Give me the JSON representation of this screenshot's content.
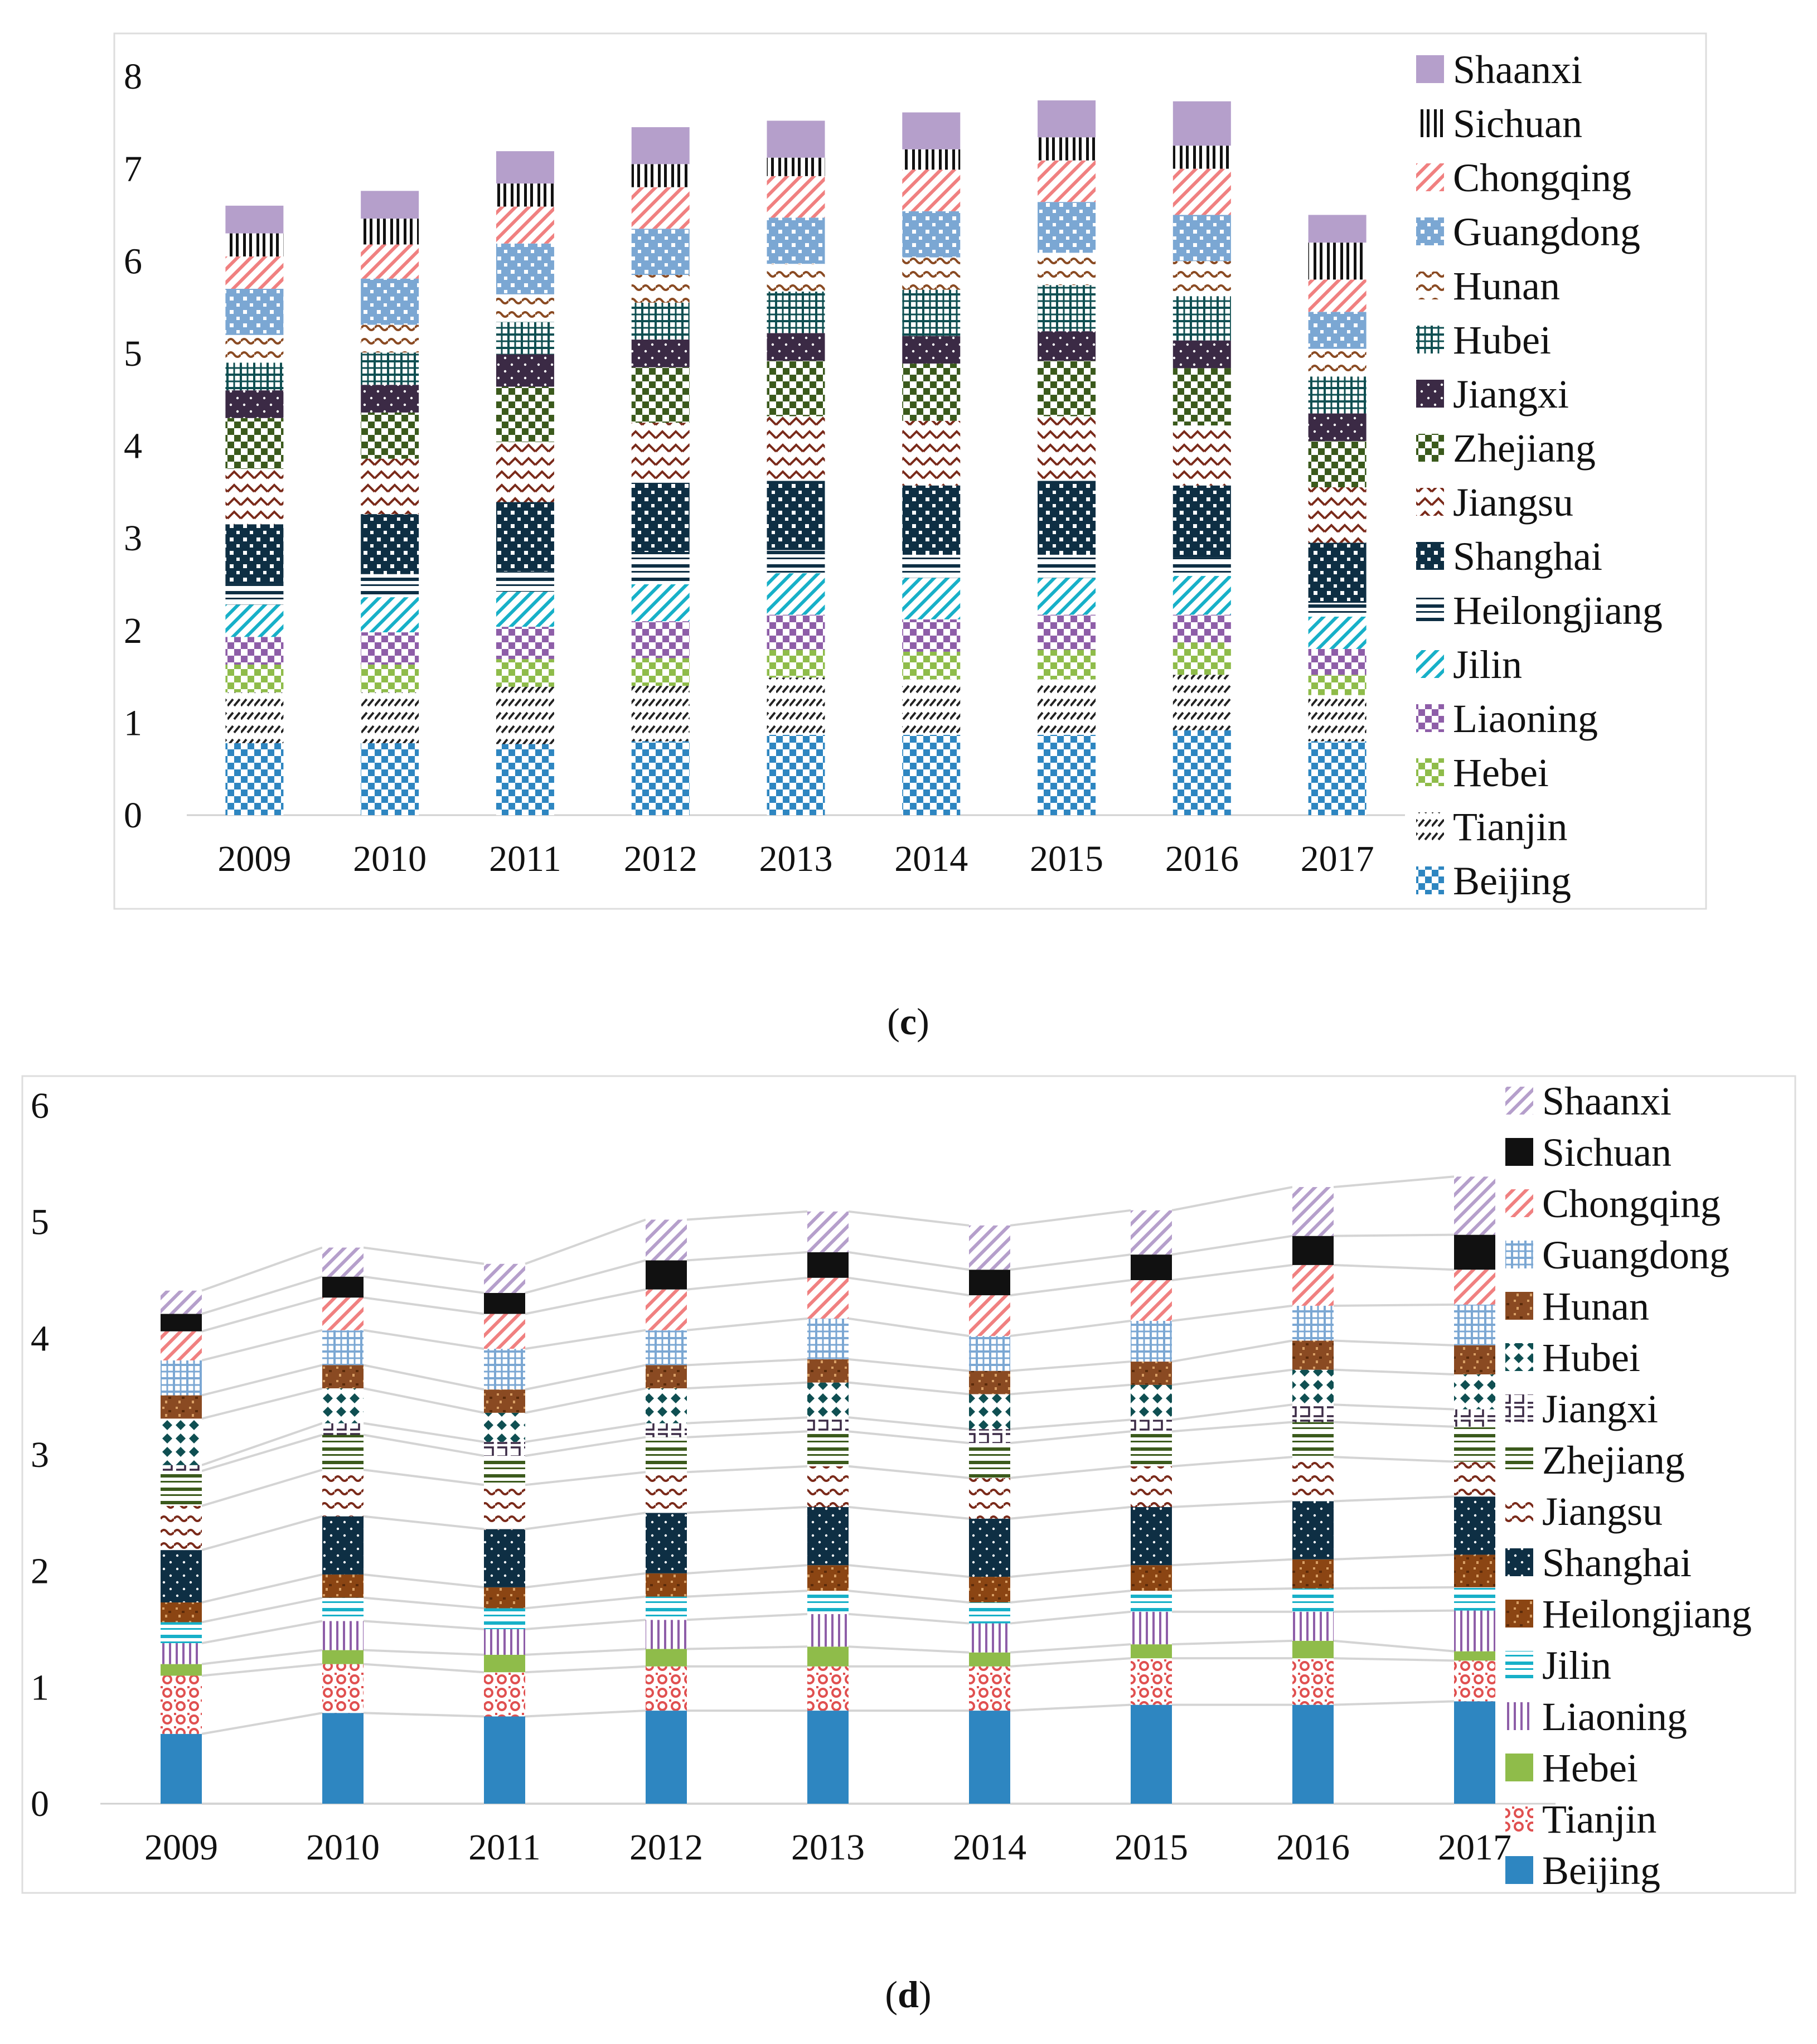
{
  "figure": {
    "panels": [
      {
        "id": "c",
        "caption": {
          "open": "(",
          "letter": "c",
          "close": ")"
        },
        "ylim": [
          0,
          8
        ],
        "yticks": [
          0,
          1,
          2,
          3,
          4,
          5,
          6,
          7,
          8
        ],
        "connector_lines": false
      },
      {
        "id": "d",
        "caption": {
          "open": "(",
          "letter": "d",
          "close": ")"
        },
        "ylim": [
          0,
          6
        ],
        "yticks": [
          0,
          1,
          2,
          3,
          4,
          5,
          6
        ],
        "connector_lines": true
      }
    ]
  },
  "chart_data": [
    {
      "type": "bar",
      "stacked": true,
      "panel": "c",
      "title": "",
      "xlabel": "",
      "ylabel": "",
      "ylim": [
        0,
        8
      ],
      "grid": false,
      "legend": "right",
      "categories": [
        "2009",
        "2010",
        "2011",
        "2012",
        "2013",
        "2014",
        "2015",
        "2016",
        "2017"
      ],
      "series": [
        {
          "name": "Beijing",
          "color": "#2e86c1",
          "values": [
            0.78,
            0.78,
            0.77,
            0.8,
            0.87,
            0.87,
            0.87,
            0.92,
            0.8
          ]
        },
        {
          "name": "Tianjin",
          "color": "#222222",
          "values": [
            0.55,
            0.55,
            0.62,
            0.6,
            0.62,
            0.6,
            0.6,
            0.6,
            0.5
          ]
        },
        {
          "name": "Hebei",
          "color": "#8fbc4a",
          "values": [
            0.3,
            0.3,
            0.3,
            0.3,
            0.3,
            0.3,
            0.32,
            0.35,
            0.22
          ]
        },
        {
          "name": "Liaoning",
          "color": "#8e5ea8",
          "values": [
            0.3,
            0.35,
            0.35,
            0.4,
            0.38,
            0.35,
            0.38,
            0.3,
            0.28
          ]
        },
        {
          "name": "Jilin",
          "color": "#17b0c8",
          "values": [
            0.35,
            0.38,
            0.38,
            0.4,
            0.45,
            0.45,
            0.4,
            0.42,
            0.35
          ]
        },
        {
          "name": "Heilongjiang",
          "color": "#0e2f44",
          "values": [
            0.22,
            0.25,
            0.22,
            0.35,
            0.25,
            0.25,
            0.25,
            0.2,
            0.15
          ]
        },
        {
          "name": "Shanghai",
          "color": "#0e2f44",
          "values": [
            0.65,
            0.65,
            0.75,
            0.75,
            0.75,
            0.75,
            0.8,
            0.78,
            0.65
          ]
        },
        {
          "name": "Jiangsu",
          "color": "#7a2a1a",
          "values": [
            0.6,
            0.6,
            0.65,
            0.65,
            0.7,
            0.7,
            0.7,
            0.65,
            0.6
          ]
        },
        {
          "name": "Zhejiang",
          "color": "#3b5a1c",
          "values": [
            0.55,
            0.5,
            0.6,
            0.6,
            0.6,
            0.62,
            0.6,
            0.62,
            0.5
          ]
        },
        {
          "name": "Jiangxi",
          "color": "#3b2a45",
          "values": [
            0.3,
            0.3,
            0.35,
            0.3,
            0.3,
            0.3,
            0.32,
            0.3,
            0.3
          ]
        },
        {
          "name": "Hubei",
          "color": "#0f4f52",
          "values": [
            0.3,
            0.35,
            0.35,
            0.4,
            0.45,
            0.5,
            0.5,
            0.48,
            0.4
          ]
        },
        {
          "name": "Hunan",
          "color": "#8a4a22",
          "values": [
            0.3,
            0.3,
            0.3,
            0.3,
            0.3,
            0.35,
            0.35,
            0.38,
            0.3
          ]
        },
        {
          "name": "Guangdong",
          "color": "#7ba7d3",
          "values": [
            0.5,
            0.5,
            0.55,
            0.5,
            0.5,
            0.5,
            0.55,
            0.5,
            0.4
          ]
        },
        {
          "name": "Chongqing",
          "color": "#f08080",
          "values": [
            0.35,
            0.37,
            0.4,
            0.45,
            0.45,
            0.45,
            0.45,
            0.5,
            0.35
          ]
        },
        {
          "name": "Sichuan",
          "color": "#111111",
          "values": [
            0.25,
            0.28,
            0.25,
            0.25,
            0.2,
            0.22,
            0.25,
            0.25,
            0.4
          ]
        },
        {
          "name": "Shaanxi",
          "color": "#b59fcb",
          "values": [
            0.3,
            0.3,
            0.35,
            0.4,
            0.4,
            0.4,
            0.4,
            0.48,
            0.3
          ]
        }
      ]
    },
    {
      "type": "bar",
      "stacked": true,
      "panel": "d",
      "title": "",
      "xlabel": "",
      "ylabel": "",
      "ylim": [
        0,
        6
      ],
      "grid": false,
      "legend": "right",
      "categories": [
        "2009",
        "2010",
        "2011",
        "2012",
        "2013",
        "2014",
        "2015",
        "2016",
        "2017"
      ],
      "series": [
        {
          "name": "Beijing",
          "color": "#2e86c1",
          "values": [
            0.6,
            0.78,
            0.75,
            0.8,
            0.8,
            0.8,
            0.85,
            0.85,
            0.88
          ]
        },
        {
          "name": "Tianjin",
          "color": "#e05050",
          "values": [
            0.5,
            0.42,
            0.38,
            0.38,
            0.38,
            0.38,
            0.4,
            0.4,
            0.35
          ]
        },
        {
          "name": "Hebei",
          "color": "#8fbc4a",
          "values": [
            0.1,
            0.12,
            0.15,
            0.15,
            0.17,
            0.12,
            0.12,
            0.15,
            0.08
          ]
        },
        {
          "name": "Liaoning",
          "color": "#8e5ea8",
          "values": [
            0.18,
            0.25,
            0.22,
            0.25,
            0.28,
            0.25,
            0.28,
            0.25,
            0.35
          ]
        },
        {
          "name": "Jilin",
          "color": "#17b0c8",
          "values": [
            0.18,
            0.2,
            0.18,
            0.2,
            0.2,
            0.18,
            0.18,
            0.2,
            0.2
          ]
        },
        {
          "name": "Heilongjiang",
          "color": "#8b4513",
          "values": [
            0.17,
            0.2,
            0.18,
            0.2,
            0.22,
            0.22,
            0.22,
            0.25,
            0.28
          ]
        },
        {
          "name": "Shanghai",
          "color": "#0e2f44",
          "values": [
            0.45,
            0.5,
            0.5,
            0.52,
            0.5,
            0.5,
            0.5,
            0.5,
            0.5
          ]
        },
        {
          "name": "Jiangsu",
          "color": "#7a2a1a",
          "values": [
            0.38,
            0.4,
            0.38,
            0.35,
            0.35,
            0.35,
            0.35,
            0.38,
            0.3
          ]
        },
        {
          "name": "Zhejiang",
          "color": "#3b5a1c",
          "values": [
            0.3,
            0.3,
            0.25,
            0.3,
            0.3,
            0.3,
            0.3,
            0.3,
            0.3
          ]
        },
        {
          "name": "Jiangxi",
          "color": "#3b2a45",
          "values": [
            0.05,
            0.1,
            0.12,
            0.12,
            0.12,
            0.12,
            0.1,
            0.15,
            0.15
          ]
        },
        {
          "name": "Hubei",
          "color": "#0f4f52",
          "values": [
            0.4,
            0.3,
            0.25,
            0.3,
            0.3,
            0.3,
            0.3,
            0.3,
            0.3
          ]
        },
        {
          "name": "Hunan",
          "color": "#8a4a22",
          "values": [
            0.2,
            0.2,
            0.2,
            0.2,
            0.2,
            0.2,
            0.2,
            0.25,
            0.25
          ]
        },
        {
          "name": "Guangdong",
          "color": "#7ba7d3",
          "values": [
            0.3,
            0.3,
            0.35,
            0.3,
            0.35,
            0.3,
            0.35,
            0.3,
            0.35
          ]
        },
        {
          "name": "Chongqing",
          "color": "#f08080",
          "values": [
            0.25,
            0.28,
            0.3,
            0.35,
            0.35,
            0.35,
            0.35,
            0.35,
            0.3
          ]
        },
        {
          "name": "Sichuan",
          "color": "#111111",
          "values": [
            0.15,
            0.18,
            0.18,
            0.25,
            0.22,
            0.22,
            0.22,
            0.25,
            0.3
          ]
        },
        {
          "name": "Shaanxi",
          "color": "#b59fcb",
          "values": [
            0.2,
            0.25,
            0.25,
            0.35,
            0.35,
            0.38,
            0.38,
            0.42,
            0.5
          ]
        }
      ]
    }
  ]
}
